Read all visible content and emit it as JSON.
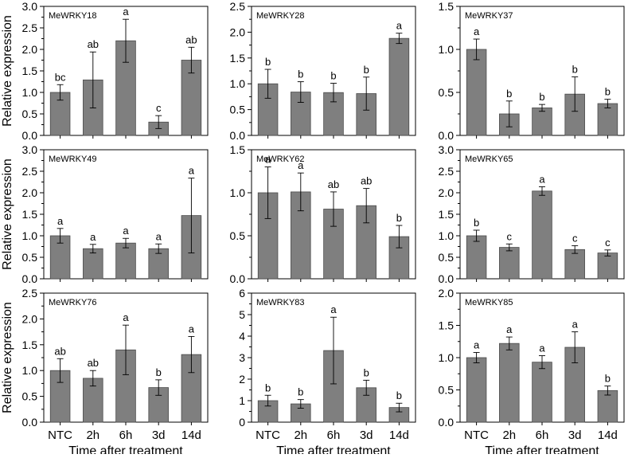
{
  "figure": {
    "ylabel": "Relative expression",
    "xlabel": "Time after treatment",
    "categories": [
      "NTC",
      "2h",
      "6h",
      "3d",
      "14d"
    ]
  },
  "chart_data": [
    {
      "type": "bar",
      "title": "MeWRKY18",
      "categories": [
        "NTC",
        "2h",
        "6h",
        "3d",
        "14d"
      ],
      "values": [
        1.0,
        1.29,
        2.2,
        0.31,
        1.75
      ],
      "errors": [
        0.18,
        0.65,
        0.5,
        0.15,
        0.3
      ],
      "labels": [
        "bc",
        "ab",
        "a",
        "c",
        "ab"
      ],
      "ylim": [
        0,
        3.0
      ],
      "yticks": [
        0,
        0.5,
        1.0,
        1.5,
        2.0,
        2.5,
        3.0
      ],
      "ytick_labels": [
        "0.0",
        "0.5",
        "1.0",
        "1.5",
        "2.0",
        "2.5",
        "3.0"
      ]
    },
    {
      "type": "bar",
      "title": "MeWRKY28",
      "categories": [
        "NTC",
        "2h",
        "6h",
        "3d",
        "14d"
      ],
      "values": [
        1.0,
        0.84,
        0.83,
        0.81,
        1.88
      ],
      "errors": [
        0.28,
        0.2,
        0.18,
        0.32,
        0.1
      ],
      "labels": [
        "b",
        "b",
        "b",
        "b",
        "a"
      ],
      "ylim": [
        0,
        2.5
      ],
      "yticks": [
        0,
        0.5,
        1.0,
        1.5,
        2.0,
        2.5
      ],
      "ytick_labels": [
        "0.0",
        "0.5",
        "1.0",
        "1.5",
        "2.0",
        "2.5"
      ]
    },
    {
      "type": "bar",
      "title": "MeWRKY37",
      "categories": [
        "NTC",
        "2h",
        "6h",
        "3d",
        "14d"
      ],
      "values": [
        1.0,
        0.25,
        0.32,
        0.48,
        0.37
      ],
      "errors": [
        0.12,
        0.15,
        0.04,
        0.2,
        0.05
      ],
      "labels": [
        "a",
        "b",
        "b",
        "b",
        "b"
      ],
      "ylim": [
        0,
        1.5
      ],
      "yticks": [
        0,
        0.5,
        1.0,
        1.5
      ],
      "ytick_labels": [
        "0.0",
        "0.5",
        "1.0",
        "1.5"
      ]
    },
    {
      "type": "bar",
      "title": "MeWRKY49",
      "categories": [
        "NTC",
        "2h",
        "6h",
        "3d",
        "14d"
      ],
      "values": [
        1.0,
        0.7,
        0.83,
        0.7,
        1.47
      ],
      "errors": [
        0.17,
        0.1,
        0.11,
        0.11,
        0.87
      ],
      "labels": [
        "a",
        "a",
        "a",
        "a",
        "a"
      ],
      "ylim": [
        0,
        3.0
      ],
      "yticks": [
        0,
        0.5,
        1.0,
        1.5,
        2.0,
        2.5,
        3.0
      ],
      "ytick_labels": [
        "0.0",
        "0.5",
        "1.0",
        "1.5",
        "2.0",
        "2.5",
        "3.0"
      ]
    },
    {
      "type": "bar",
      "title": "MeWRKY62",
      "categories": [
        "NTC",
        "2h",
        "6h",
        "3d",
        "14d"
      ],
      "values": [
        1.0,
        1.01,
        0.81,
        0.85,
        0.49
      ],
      "errors": [
        0.3,
        0.22,
        0.2,
        0.2,
        0.13
      ],
      "labels": [
        "a",
        "a",
        "ab",
        "ab",
        "b"
      ],
      "ylim": [
        0,
        1.5
      ],
      "yticks": [
        0,
        0.5,
        1.0,
        1.5
      ],
      "ytick_labels": [
        "0.0",
        "0.5",
        "1.0",
        "1.5"
      ]
    },
    {
      "type": "bar",
      "title": "MeWRKY65",
      "categories": [
        "NTC",
        "2h",
        "6h",
        "3d",
        "14d"
      ],
      "values": [
        1.0,
        0.73,
        2.04,
        0.68,
        0.6
      ],
      "errors": [
        0.13,
        0.08,
        0.1,
        0.09,
        0.07
      ],
      "labels": [
        "b",
        "c",
        "a",
        "c",
        "c"
      ],
      "ylim": [
        0,
        3.0
      ],
      "yticks": [
        0,
        0.5,
        1.0,
        1.5,
        2.0,
        2.5,
        3.0
      ],
      "ytick_labels": [
        "0.0",
        "0.5",
        "1.0",
        "1.5",
        "2.0",
        "2.5",
        "3.0"
      ]
    },
    {
      "type": "bar",
      "title": "MeWRKY76",
      "categories": [
        "NTC",
        "2h",
        "6h",
        "3d",
        "14d"
      ],
      "values": [
        1.0,
        0.85,
        1.4,
        0.67,
        1.31
      ],
      "errors": [
        0.23,
        0.15,
        0.48,
        0.15,
        0.35
      ],
      "labels": [
        "ab",
        "ab",
        "a",
        "b",
        "a"
      ],
      "ylim": [
        0,
        2.5
      ],
      "yticks": [
        0,
        0.5,
        1.0,
        1.5,
        2.0,
        2.5
      ],
      "ytick_labels": [
        "0.0",
        "0.5",
        "1.0",
        "1.5",
        "2.0",
        "2.5"
      ]
    },
    {
      "type": "bar",
      "title": "MeWRKY83",
      "categories": [
        "NTC",
        "2h",
        "6h",
        "3d",
        "14d"
      ],
      "values": [
        1.0,
        0.85,
        3.33,
        1.6,
        0.68
      ],
      "errors": [
        0.25,
        0.2,
        1.55,
        0.35,
        0.2
      ],
      "labels": [
        "b",
        "b",
        "a",
        "b",
        "b"
      ],
      "ylim": [
        0,
        6
      ],
      "yticks": [
        0,
        1,
        2,
        3,
        4,
        5,
        6
      ],
      "ytick_labels": [
        "0",
        "1",
        "2",
        "3",
        "4",
        "5",
        "6"
      ]
    },
    {
      "type": "bar",
      "title": "MeWRKY85",
      "categories": [
        "NTC",
        "2h",
        "6h",
        "3d",
        "14d"
      ],
      "values": [
        1.0,
        1.22,
        0.93,
        1.16,
        0.49
      ],
      "errors": [
        0.08,
        0.1,
        0.1,
        0.24,
        0.07
      ],
      "labels": [
        "a",
        "a",
        "a",
        "a",
        "b"
      ],
      "ylim": [
        0,
        2.0
      ],
      "yticks": [
        0,
        0.5,
        1.0,
        1.5,
        2.0
      ],
      "ytick_labels": [
        "0.0",
        "0.5",
        "1.0",
        "1.5",
        "2.0"
      ]
    }
  ]
}
